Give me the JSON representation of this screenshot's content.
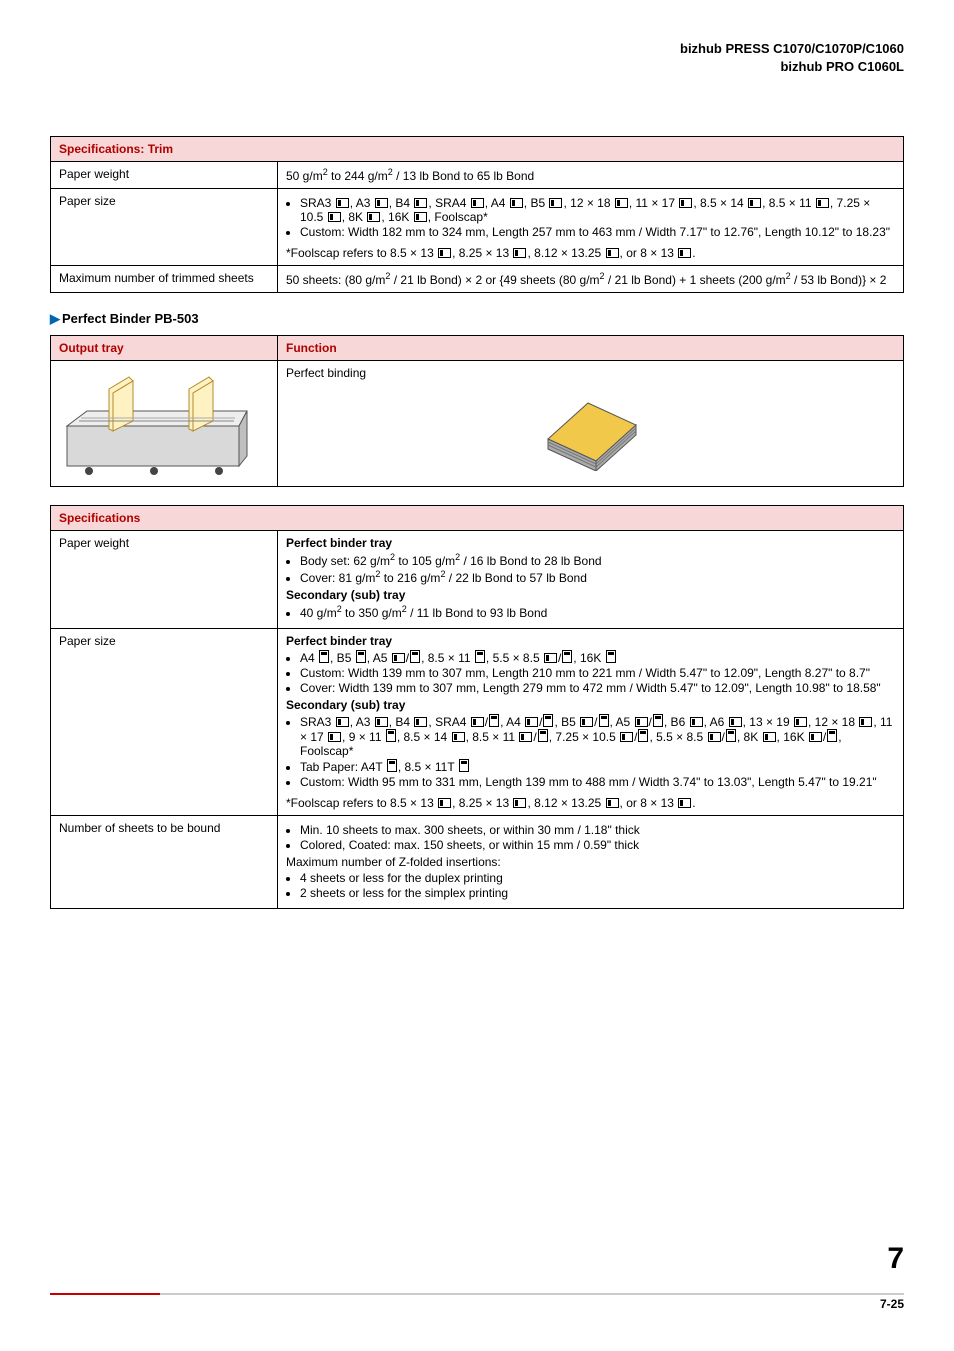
{
  "header": {
    "line1": "bizhub PRESS C1070/C1070P/C1060",
    "line2": "bizhub PRO C1060L"
  },
  "trim_table": {
    "title": "Specifications: Trim",
    "rows": {
      "paper_weight": {
        "label": "Paper weight",
        "value_html": "50 g/m<span class='sup'>2</span> to 244 g/m<span class='sup'>2</span> / 13 lb Bond to 65 lb Bond"
      },
      "paper_size": {
        "label": "Paper size",
        "bullets": [
          "SRA3 <span class='orient landscape'></span>, A3 <span class='orient landscape'></span>, B4 <span class='orient landscape'></span>, SRA4 <span class='orient landscape'></span>, A4 <span class='orient landscape'></span>, B5 <span class='orient landscape'></span>, 12 × 18 <span class='orient landscape'></span>, 11 × 17 <span class='orient landscape'></span>, 8.5 × 14 <span class='orient landscape'></span>, 8.5 × 11 <span class='orient landscape'></span>, 7.25 × 10.5 <span class='orient landscape'></span>, 8K <span class='orient landscape'></span>, 16K <span class='orient landscape'></span>, Foolscap*",
          "Custom: Width 182 mm to 324 mm, Length 257 mm to 463 mm / Width 7.17\" to 12.76\", Length 10.12\" to 18.23\""
        ],
        "foot": "*Foolscap refers to 8.5 × 13 <span class='orient landscape'></span>, 8.25 × 13 <span class='orient landscape'></span>, 8.12 × 13.25 <span class='orient landscape'></span>, or 8 × 13 <span class='orient landscape'></span>."
      },
      "max_trimmed": {
        "label": "Maximum number of trimmed sheets",
        "value_html": "50 sheets: (80 g/m<span class='sup'>2</span> / 21 lb Bond) × 2 or {49 sheets (80 g/m<span class='sup'>2</span> / 21 lb Bond) + 1 sheets (200 g/m<span class='sup'>2</span> / 53 lb Bond)} × 2"
      }
    }
  },
  "section_title": "Perfect Binder PB-503",
  "output_table": {
    "headers": {
      "left": "Output tray",
      "right": "Function"
    },
    "function_label": "Perfect binding",
    "booklet_colors": {
      "cover": "#f2c84b",
      "pages": "#aaaaaa",
      "edge": "#555555"
    },
    "tray_colors": {
      "front": "#d9d9d9",
      "top": "#eeeeee",
      "page": "#fff2c2",
      "page_edge": "#b08b2a",
      "side": "#bfbfbf"
    }
  },
  "pb_table": {
    "title": "Specifications",
    "rows": {
      "paper_weight": {
        "label": "Paper weight",
        "html": "<span class='strong'>Perfect binder tray</span><ul class='b'><li>Body set: 62 g/m<span class='sup'>2</span> to 105 g/m<span class='sup'>2</span> / 16 lb Bond to 28 lb Bond</li><li>Cover: 81 g/m<span class='sup'>2</span> to 216 g/m<span class='sup'>2</span> / 22 lb Bond to 57 lb Bond</li></ul><span class='strong'>Secondary (sub) tray</span><ul class='b'><li>40 g/m<span class='sup'>2</span> to 350 g/m<span class='sup'>2</span> / 11 lb Bond to 93 lb Bond</li></ul>"
      },
      "paper_size": {
        "label": "Paper size",
        "html": "<span class='strong'>Perfect binder tray</span><ul class='b'><li>A4 <span class='orient portrait'></span>, B5 <span class='orient portrait'></span>, A5 <span class='orient landscape'></span>/<span class='orient portrait'></span>, 8.5 × 11 <span class='orient portrait'></span>, 5.5 × 8.5 <span class='orient landscape'></span>/<span class='orient portrait'></span>, 16K <span class='orient portrait'></span></li><li>Custom: Width 139 mm to 307 mm, Length 210 mm to 221 mm / Width 5.47\" to 12.09\", Length 8.27\" to 8.7\"</li><li>Cover: Width 139 mm to 307 mm, Length 279 mm to 472 mm / Width 5.47\" to 12.09\", Length 10.98\" to 18.58\"</li></ul><span class='strong'>Secondary (sub) tray</span><ul class='b'><li>SRA3 <span class='orient landscape'></span>, A3 <span class='orient landscape'></span>, B4 <span class='orient landscape'></span>, SRA4 <span class='orient landscape'></span>/<span class='orient portrait'></span>, A4 <span class='orient landscape'></span>/<span class='orient portrait'></span>, B5 <span class='orient landscape'></span>/<span class='orient portrait'></span>, A5 <span class='orient landscape'></span>/<span class='orient portrait'></span>, B6 <span class='orient landscape'></span>, A6 <span class='orient landscape'></span>, 13 × 19 <span class='orient landscape'></span>, 12 × 18 <span class='orient landscape'></span>, 11 × 17 <span class='orient landscape'></span>, 9 × 11 <span class='orient portrait'></span>, 8.5 × 14 <span class='orient landscape'></span>, 8.5 × 11 <span class='orient landscape'></span>/<span class='orient portrait'></span>, 7.25 × 10.5 <span class='orient landscape'></span>/<span class='orient portrait'></span>, 5.5 × 8.5 <span class='orient landscape'></span>/<span class='orient portrait'></span>, 8K <span class='orient landscape'></span>, 16K <span class='orient landscape'></span>/<span class='orient portrait'></span>, Foolscap*</li><li>Tab Paper: A4T <span class='orient portrait'></span>, 8.5 × 11T <span class='orient portrait'></span></li><li>Custom: Width 95 mm to 331 mm, Length 139 mm to 488 mm / Width 3.74\" to 13.03\", Length 5.47\" to 19.21\"</li></ul><div style='margin-top:6px;'>*Foolscap refers to 8.5 × 13 <span class='orient landscape'></span>, 8.25 × 13 <span class='orient landscape'></span>, 8.12 × 13.25 <span class='orient landscape'></span>, or 8 × 13 <span class='orient landscape'></span>.</div>"
      },
      "num_sheets": {
        "label": "Number of sheets to be bound",
        "html": "<ul class='b'><li>Min. 10 sheets to max. 300 sheets, or within 30 mm / 1.18\" thick</li><li>Colored, Coated: max. 150 sheets, or within 15 mm / 0.59\" thick</li></ul>Maximum number of Z-folded insertions:<ul class='b'><li>4 sheets or less for the duplex printing</li><li>2 sheets or less for the simplex printing</li></ul>"
      }
    }
  },
  "footer": {
    "chapter": "7",
    "page": "7-25",
    "bar_color": "#cccccc",
    "accent_color": "#c60000"
  }
}
